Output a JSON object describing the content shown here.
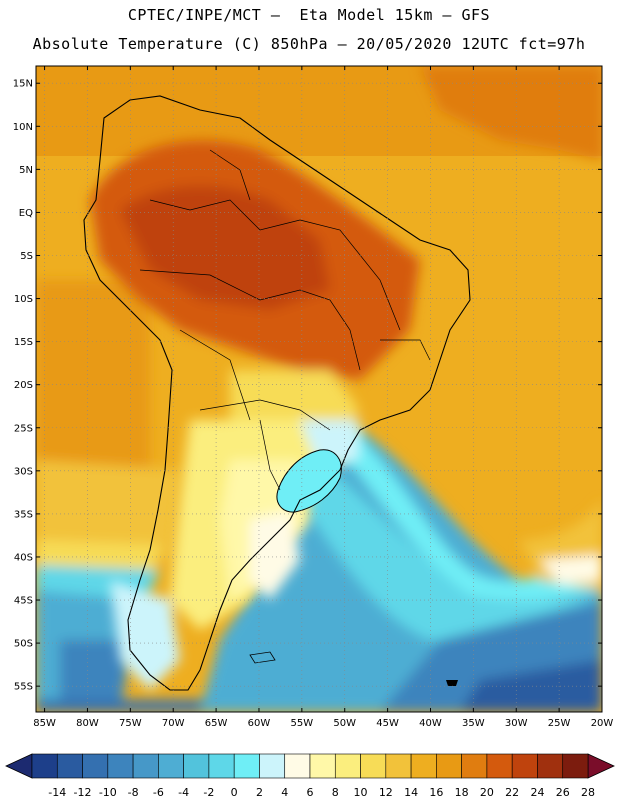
{
  "header": {
    "title_line1": "CPTEC/INPE/MCT –  Eta Model 15km – GFS",
    "title_line2": "Absolute Temperature (C) 850hPa – 20/05/2020 12UTC fct=97h"
  },
  "map": {
    "region": "South America",
    "lat_range": [
      -58,
      17
    ],
    "lon_range": [
      -86,
      -20
    ],
    "lat_ticks": [
      "15N",
      "10N",
      "5N",
      "EQ",
      "5S",
      "10S",
      "15S",
      "20S",
      "25S",
      "30S",
      "35S",
      "40S",
      "45S",
      "50S",
      "55S"
    ],
    "lon_ticks": [
      "85W",
      "80W",
      "75W",
      "70W",
      "65W",
      "60W",
      "55W",
      "50W",
      "45W",
      "40W",
      "35W",
      "30W",
      "25W",
      "20W"
    ],
    "grid": "dotted"
  },
  "legend": {
    "labels": [
      "-14",
      "-12",
      "-10",
      "-8",
      "-6",
      "-4",
      "-2",
      "0",
      "2",
      "4",
      "6",
      "8",
      "10",
      "12",
      "14",
      "16",
      "18",
      "20",
      "22",
      "24",
      "26",
      "28"
    ],
    "colors": [
      "#1d3f8a",
      "#2a5ba0",
      "#3470b0",
      "#3d84bd",
      "#4698c8",
      "#4eadd3",
      "#52c3dc",
      "#5ed7e8",
      "#6feef6",
      "#ccf4fb",
      "#fffbe6",
      "#fff8a8",
      "#fbee7e",
      "#f7dc57",
      "#f2c23a",
      "#eeae20",
      "#e89a14",
      "#e07d10",
      "#d45a0d",
      "#bf430d",
      "#a0300e",
      "#7c1c0e"
    ],
    "underflow_color": "#1c2a70",
    "overflow_color": "#7a0d2a"
  }
}
